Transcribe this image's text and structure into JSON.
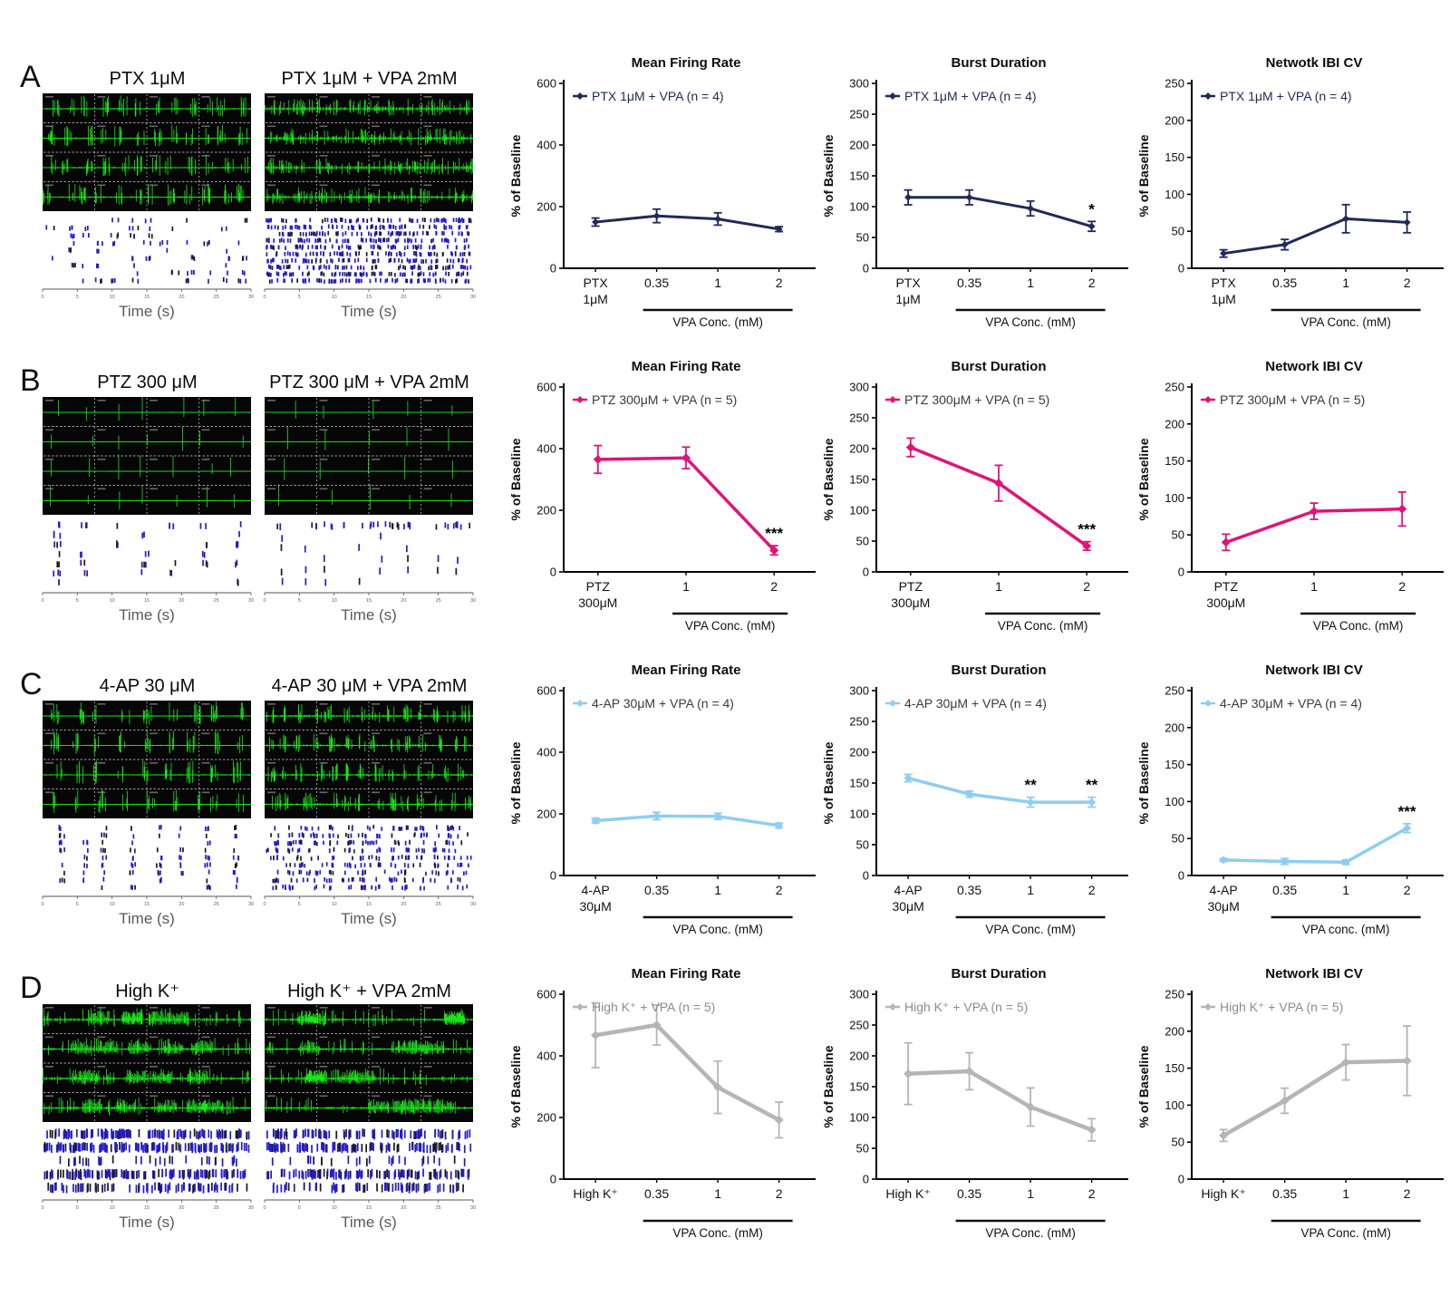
{
  "figure": {
    "background": "#ffffff"
  },
  "rows": [
    {
      "letter": "A",
      "panels": [
        {
          "title": "PTX 1μM",
          "time_label": "Time (s)",
          "time_ticks": [
            "0",
            "5",
            "10",
            "15",
            "20",
            "25",
            "30"
          ],
          "trace": {
            "style": "bursts",
            "bursts": 12,
            "amp": 12,
            "noise": 1.0,
            "spikes": 40,
            "seed": 11
          },
          "raster": {
            "style": "columns",
            "columns": 13,
            "rows": 9,
            "p": 0.6,
            "spread": 5,
            "density": 0.5,
            "seed": 21
          }
        },
        {
          "title": "PTX 1μM + VPA 2mM",
          "time_label": "Time (s)",
          "time_ticks": [
            "0",
            "5",
            "10",
            "15",
            "20",
            "25",
            "30"
          ],
          "trace": {
            "style": "dense",
            "bursts": 14,
            "amp": 9,
            "noise": 2.4,
            "spikes": 85,
            "seed": 12
          },
          "raster": {
            "style": "dense",
            "columns": 14,
            "rows": 10,
            "p": 0.7,
            "spread": 4,
            "density": 0.58,
            "seed": 22
          }
        }
      ]
    },
    {
      "letter": "B",
      "panels": [
        {
          "title": "PTZ 300 μM",
          "time_label": "Time (s)",
          "time_ticks": [
            "0",
            "5",
            "10",
            "15",
            "20",
            "25",
            "30"
          ],
          "trace": {
            "style": "sparse",
            "bursts": 7,
            "amp": 15,
            "noise": 0.6,
            "spikes": 7,
            "seed": 13
          },
          "raster": {
            "style": "columns",
            "columns": 7,
            "rows": 7,
            "p": 0.6,
            "spread": 4,
            "density": 0.4,
            "seed": 23
          }
        },
        {
          "title": "PTZ 300 μM + VPA 2mM",
          "time_label": "Time (s)",
          "time_ticks": [
            "0",
            "5",
            "10",
            "15",
            "20",
            "25",
            "30"
          ],
          "trace": {
            "style": "sparse",
            "bursts": 5,
            "amp": 14,
            "noise": 0.5,
            "spikes": 5,
            "seed": 14
          },
          "raster": {
            "style": "sparse-cols",
            "columns": 8,
            "rows": 6,
            "p": 0.45,
            "spread": 2,
            "density": 0.3,
            "seed": 24
          }
        }
      ]
    },
    {
      "letter": "C",
      "panels": [
        {
          "title": "4-AP 30 μM",
          "time_label": "Time (s)",
          "time_ticks": [
            "0",
            "5",
            "10",
            "15",
            "20",
            "25",
            "30"
          ],
          "trace": {
            "style": "bursts",
            "bursts": 9,
            "amp": 13,
            "noise": 0.8,
            "spikes": 40,
            "seed": 15
          },
          "raster": {
            "style": "columns",
            "columns": 8,
            "rows": 9,
            "p": 0.85,
            "spread": 3,
            "density": 0.5,
            "seed": 25
          }
        },
        {
          "title": "4-AP 30 μM + VPA 2mM",
          "time_label": "Time (s)",
          "time_ticks": [
            "0",
            "5",
            "10",
            "15",
            "20",
            "25",
            "30"
          ],
          "trace": {
            "style": "bursts",
            "bursts": 14,
            "amp": 10,
            "noise": 1.4,
            "spikes": 60,
            "seed": 16
          },
          "raster": {
            "style": "dense-cols",
            "columns": 14,
            "rows": 9,
            "p": 0.7,
            "spread": 3,
            "density": 0.55,
            "seed": 26
          }
        }
      ]
    },
    {
      "letter": "D",
      "panels": [
        {
          "title": "High K⁺",
          "time_label": "Time (s)",
          "time_ticks": [
            "0",
            "5",
            "10",
            "15",
            "20",
            "25",
            "30"
          ],
          "trace": {
            "style": "noisy",
            "bursts": 5,
            "amp": 11,
            "noise": 1.8,
            "spikes": 45,
            "seed": 17
          },
          "raster": {
            "style": "bands",
            "columns": 10,
            "rows": 5,
            "p": 0.6,
            "spread": 4,
            "density": 0.6,
            "seed": 27
          }
        },
        {
          "title": "High K⁺ + VPA 2mM",
          "time_label": "Time (s)",
          "time_ticks": [
            "0",
            "5",
            "10",
            "15",
            "20",
            "25",
            "30"
          ],
          "trace": {
            "style": "noisy",
            "bursts": 4,
            "amp": 10,
            "noise": 1.6,
            "spikes": 38,
            "seed": 18
          },
          "raster": {
            "style": "bands",
            "columns": 10,
            "rows": 5,
            "p": 0.5,
            "spread": 4,
            "density": 0.48,
            "seed": 28
          }
        }
      ]
    }
  ],
  "chart_data": [
    {
      "row": "A",
      "type": "line",
      "title": "Mean Firing Rate",
      "ylabel": "% of Baseline",
      "ylim": [
        0,
        600
      ],
      "yticks": [
        0,
        200,
        400,
        600
      ],
      "categories": [
        [
          "PTX",
          "1μM"
        ],
        "0.35",
        "1",
        "2"
      ],
      "xlabel": "VPA Conc. (mM)",
      "legend": "PTX 1μM + VPA (n = 4)",
      "color": "#1f2a56",
      "legend_color": "#1f2a56",
      "line_width": 3,
      "marker": 4,
      "values": [
        150,
        170,
        160,
        127
      ],
      "errors": [
        13,
        22,
        20,
        8
      ],
      "sig": [
        "",
        "",
        "",
        ""
      ]
    },
    {
      "row": "A",
      "type": "line",
      "title": "Burst Duration",
      "ylabel": "% of Baseline",
      "ylim": [
        0,
        300
      ],
      "yticks": [
        0,
        50,
        100,
        150,
        200,
        250,
        300
      ],
      "categories": [
        [
          "PTX",
          "1μM"
        ],
        "0.35",
        "1",
        "2"
      ],
      "xlabel": "VPA Conc. (mM)",
      "legend": "PTX 1μM + VPA (n = 4)",
      "color": "#1f2a56",
      "legend_color": "#1f2a56",
      "line_width": 3,
      "marker": 4,
      "values": [
        115,
        115,
        97,
        68
      ],
      "errors": [
        12,
        12,
        12,
        8
      ],
      "sig": [
        "",
        "",
        "",
        "*"
      ]
    },
    {
      "row": "A",
      "type": "line",
      "title": "Netwotk IBI CV",
      "ylabel": "% of Baseline",
      "ylim": [
        0,
        250
      ],
      "yticks": [
        0,
        50,
        100,
        150,
        200,
        250
      ],
      "categories": [
        [
          "PTX",
          "1μM"
        ],
        "0.35",
        "1",
        "2"
      ],
      "xlabel": "VPA Conc. (mM)",
      "legend": "PTX 1μM + VPA (n = 4)",
      "color": "#1f2a56",
      "legend_color": "#1f2a56",
      "line_width": 3,
      "marker": 4,
      "values": [
        20,
        32,
        67,
        62
      ],
      "errors": [
        5,
        7,
        19,
        14
      ],
      "sig": [
        "",
        "",
        "",
        ""
      ]
    },
    {
      "row": "B",
      "type": "line",
      "title": "Mean Firing Rate",
      "ylabel": "% of Baseline",
      "ylim": [
        0,
        600
      ],
      "yticks": [
        0,
        200,
        400,
        600
      ],
      "categories": [
        [
          "PTZ",
          "300μM"
        ],
        "1",
        "2"
      ],
      "xlabel": "VPA Conc. (mM)",
      "legend": "PTZ 300μM + VPA (n = 5)",
      "color": "#e01379",
      "legend_color": "#3a3a3a",
      "line_width": 3.5,
      "marker": 5,
      "values": [
        365,
        370,
        70
      ],
      "errors": [
        45,
        35,
        15
      ],
      "sig": [
        "",
        "",
        "***"
      ]
    },
    {
      "row": "B",
      "type": "line",
      "title": "Burst Duration",
      "ylabel": "% of Baseline",
      "ylim": [
        0,
        300
      ],
      "yticks": [
        0,
        50,
        100,
        150,
        200,
        250,
        300
      ],
      "categories": [
        [
          "PTZ",
          "300μM"
        ],
        "1",
        "2"
      ],
      "xlabel": "VPA Conc. (mM)",
      "legend": "PTZ 300μM + VPA (n = 5)",
      "color": "#e01379",
      "legend_color": "#3a3a3a",
      "line_width": 3.5,
      "marker": 5,
      "values": [
        202,
        144,
        42
      ],
      "errors": [
        15,
        29,
        7
      ],
      "sig": [
        "",
        "",
        "***"
      ]
    },
    {
      "row": "B",
      "type": "line",
      "title": "Network IBI CV",
      "ylabel": "% of Baseline",
      "ylim": [
        0,
        250
      ],
      "yticks": [
        0,
        50,
        100,
        150,
        200,
        250
      ],
      "categories": [
        [
          "PTZ",
          "300μM"
        ],
        "1",
        "2"
      ],
      "xlabel": "VPA Conc. (mM)",
      "legend": "PTZ 300μM + VPA (n = 5)",
      "color": "#e01379",
      "legend_color": "#3a3a3a",
      "line_width": 3.5,
      "marker": 5,
      "values": [
        40,
        82,
        85
      ],
      "errors": [
        11,
        11,
        23
      ],
      "sig": [
        "",
        "",
        ""
      ]
    },
    {
      "row": "C",
      "type": "line",
      "title": "Mean Firing Rate",
      "ylabel": "% of Baseline",
      "ylim": [
        0,
        600
      ],
      "yticks": [
        0,
        200,
        400,
        600
      ],
      "categories": [
        [
          "4-AP",
          "30μM"
        ],
        "0.35",
        "1",
        "2"
      ],
      "xlabel": "VPA Conc. (mM)",
      "legend": "4-AP 30μM + VPA (n = 4)",
      "color": "#8ecdf3",
      "legend_color": "#3a3a3a",
      "line_width": 3.5,
      "marker": 4.5,
      "values": [
        178,
        193,
        192,
        162
      ],
      "errors": [
        8,
        12,
        10,
        8
      ],
      "sig": [
        "",
        "",
        "",
        ""
      ]
    },
    {
      "row": "C",
      "type": "line",
      "title": "Burst Duration",
      "ylabel": "% of Baseline",
      "ylim": [
        0,
        300
      ],
      "yticks": [
        0,
        50,
        100,
        150,
        200,
        250,
        300
      ],
      "categories": [
        [
          "4-AP",
          "30μM"
        ],
        "0.35",
        "1",
        "2"
      ],
      "xlabel": "VPA Conc. (mM)",
      "legend": "4-AP 30μM + VPA (n = 4)",
      "color": "#8ecdf3",
      "legend_color": "#3a3a3a",
      "line_width": 3.5,
      "marker": 4.5,
      "values": [
        158,
        132,
        119,
        119
      ],
      "errors": [
        6,
        5,
        8,
        8
      ],
      "sig": [
        "",
        "",
        "**",
        "**"
      ]
    },
    {
      "row": "C",
      "type": "line",
      "title": "Network IBI CV",
      "ylabel": "% of Baseline",
      "ylim": [
        0,
        250
      ],
      "yticks": [
        0,
        50,
        100,
        150,
        200,
        250
      ],
      "categories": [
        [
          "4-AP",
          "30μM"
        ],
        "0.35",
        "1",
        "2"
      ],
      "xlabel": "VPA conc. (mM)",
      "legend": "4-AP 30μM + VPA (n = 4)",
      "color": "#8ecdf3",
      "legend_color": "#3a3a3a",
      "line_width": 3.5,
      "marker": 4.5,
      "values": [
        21,
        19,
        18,
        64
      ],
      "errors": [
        2,
        4,
        3,
        6
      ],
      "sig": [
        "",
        "",
        "",
        "***"
      ]
    },
    {
      "row": "D",
      "type": "line",
      "title": "Mean Firing Rate",
      "ylabel": "% of Baseline",
      "ylim": [
        0,
        600
      ],
      "yticks": [
        0,
        200,
        400,
        600
      ],
      "categories": [
        "High K⁺",
        "0.35",
        "1",
        "2"
      ],
      "xlabel": "VPA Conc. (mM)",
      "legend": "High K⁺ + VPA (n = 5)",
      "color": "#b5b5b5",
      "legend_color": "#8c8c8c",
      "line_width": 4.5,
      "marker": 5,
      "values": [
        467,
        500,
        298,
        192
      ],
      "errors": [
        105,
        65,
        85,
        58
      ],
      "sig": [
        "",
        "",
        "",
        ""
      ]
    },
    {
      "row": "D",
      "type": "line",
      "title": "Burst Duration",
      "ylabel": "% of Baseline",
      "ylim": [
        0,
        300
      ],
      "yticks": [
        0,
        50,
        100,
        150,
        200,
        250,
        300
      ],
      "categories": [
        "High K⁺",
        "0.35",
        "1",
        "2"
      ],
      "xlabel": "VPA Conc. (mM)",
      "legend": "High K⁺ + VPA (n = 5)",
      "color": "#b5b5b5",
      "legend_color": "#8c8c8c",
      "line_width": 4.5,
      "marker": 5,
      "values": [
        171,
        175,
        117,
        80
      ],
      "errors": [
        50,
        30,
        31,
        18
      ],
      "sig": [
        "",
        "",
        "",
        ""
      ]
    },
    {
      "row": "D",
      "type": "line",
      "title": "Network IBI CV",
      "ylabel": "% of Baseline",
      "ylim": [
        0,
        250
      ],
      "yticks": [
        0,
        50,
        100,
        150,
        200,
        250
      ],
      "categories": [
        "High K⁺",
        "0.35",
        "1",
        "2"
      ],
      "xlabel": "VPA Conc. (mM)",
      "legend": "High K⁺ + VPA (n = 5)",
      "color": "#b5b5b5",
      "legend_color": "#8c8c8c",
      "line_width": 4.5,
      "marker": 5,
      "values": [
        59,
        106,
        158,
        160
      ],
      "errors": [
        8,
        17,
        24,
        47
      ],
      "sig": [
        "",
        "",
        "",
        ""
      ]
    }
  ]
}
